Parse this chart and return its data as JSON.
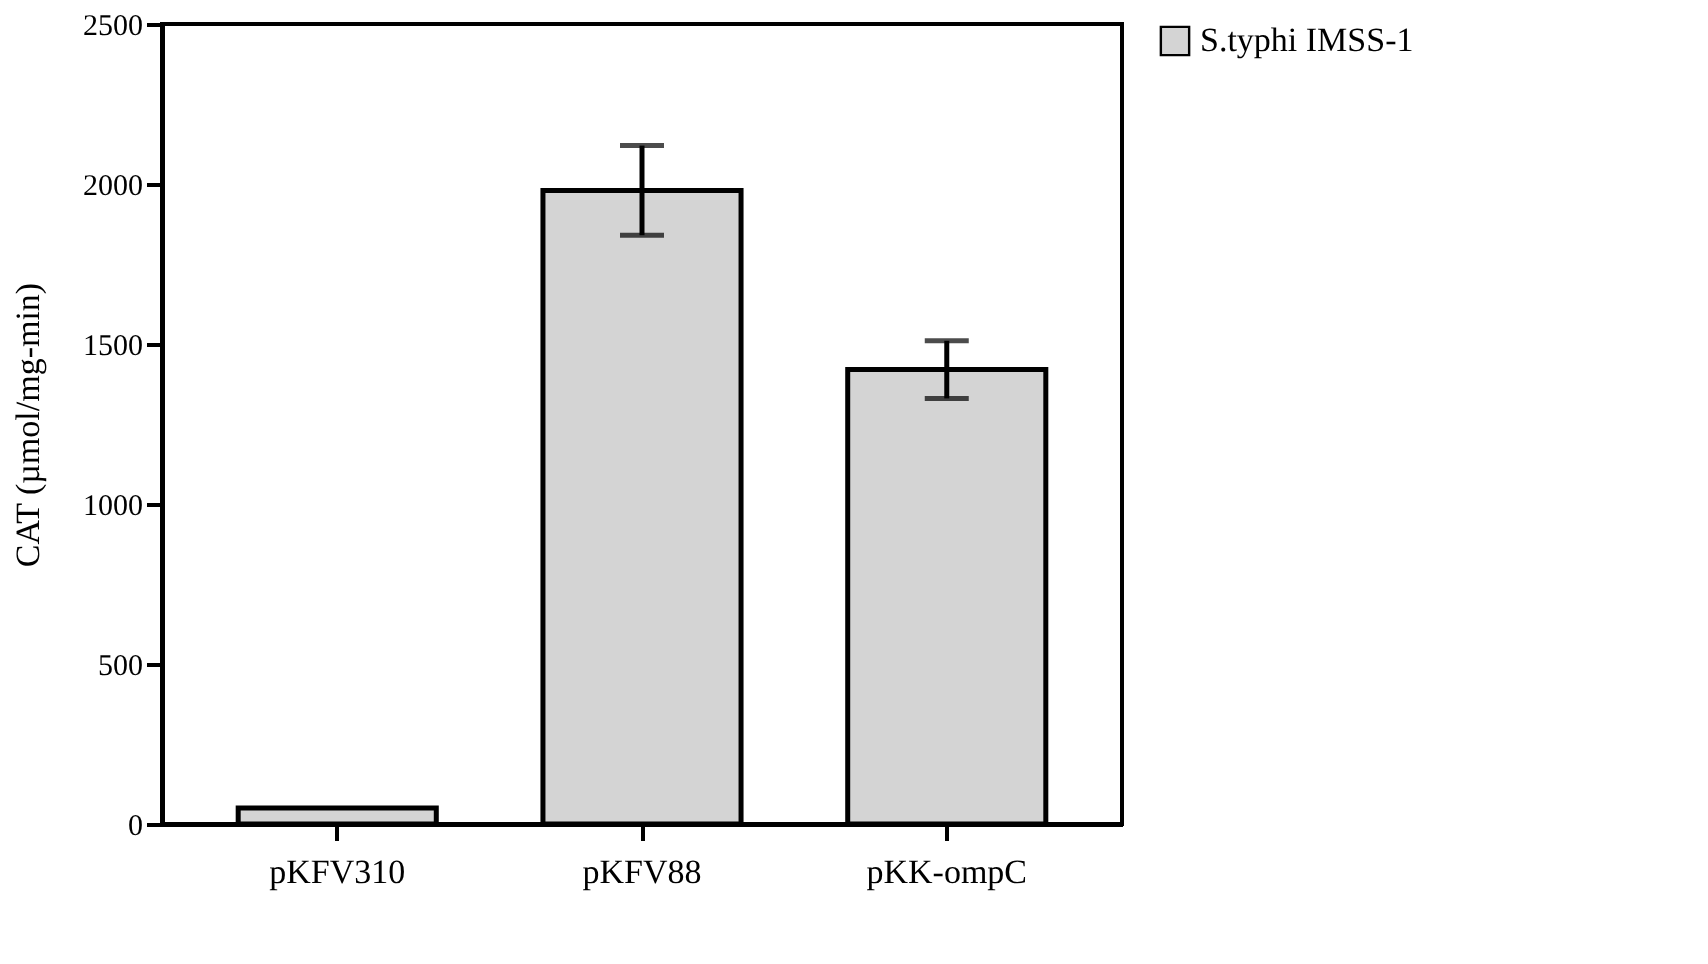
{
  "chart_data": {
    "type": "bar",
    "ylabel": "CAT (µmol/mg-min)",
    "categories": [
      "pKFV310",
      "pKFV88",
      "pKK-ompC"
    ],
    "series": [
      {
        "name": "S.typhi IMSS-1",
        "color": "#d4d4d4",
        "values": [
          50,
          1980,
          1420
        ],
        "errors": [
          null,
          140,
          90
        ]
      }
    ],
    "ylim": [
      0,
      2500
    ],
    "yticks": [
      0,
      500,
      1000,
      1500,
      2000,
      2500
    ],
    "grid": false,
    "legend": "right"
  }
}
